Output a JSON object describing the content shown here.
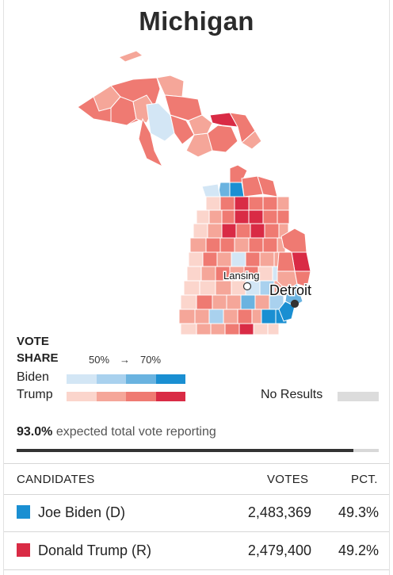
{
  "title": "Michigan",
  "map": {
    "cities": [
      {
        "name": "Lansing",
        "kind": "capital"
      },
      {
        "name": "Detroit",
        "kind": "major"
      }
    ]
  },
  "legend": {
    "title": "VOTE SHARE",
    "scale_low": "50%",
    "arrow": "→",
    "scale_high": "70%",
    "biden_label": "Biden",
    "trump_label": "Trump",
    "no_results_label": "No Results",
    "biden_colors": [
      "#d3e6f5",
      "#a9d1ee",
      "#6ab3e0",
      "#1a8fd2"
    ],
    "trump_colors": [
      "#fbd5cc",
      "#f5a699",
      "#ef7a72",
      "#d92b45"
    ],
    "no_results_color": "#dcdcdc"
  },
  "reporting": {
    "percent": "93.0%",
    "text": "expected total vote reporting",
    "fraction": 0.93
  },
  "table": {
    "headers": {
      "candidates": "CANDIDATES",
      "votes": "VOTES",
      "pct": "PCT."
    },
    "rows": [
      {
        "name": "Joe Biden (D)",
        "votes": "2,483,369",
        "pct": "49.3%",
        "color": "#1a8fd2"
      },
      {
        "name": "Donald Trump (R)",
        "votes": "2,479,400",
        "pct": "49.2%",
        "color": "#d92b45"
      }
    ]
  }
}
